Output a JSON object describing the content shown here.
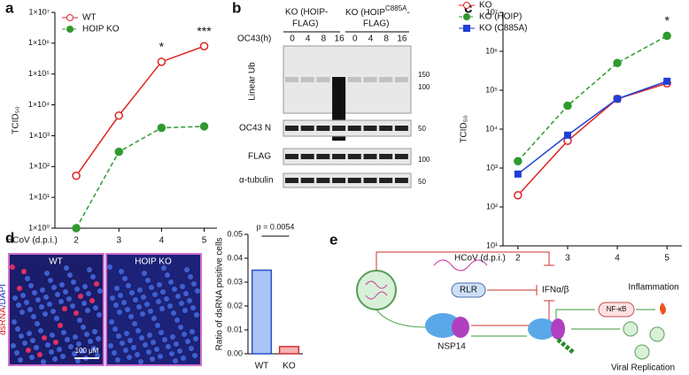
{
  "chart_data": [
    {
      "type": "line",
      "ylabel": "TCID₅₀",
      "xlabel": "HCoV (d.p.i.)",
      "x": [
        2,
        3,
        4,
        5
      ],
      "xlim": [
        1.5,
        5.3
      ],
      "xticks": [
        2,
        3,
        4,
        5
      ],
      "log_y": true,
      "ylim": [
        1,
        10000000
      ],
      "yticks": [
        {
          "value": 1,
          "label": "1×10⁰"
        },
        {
          "value": 10,
          "label": "1×10¹"
        },
        {
          "value": 100,
          "label": "1×10²"
        },
        {
          "value": 1000,
          "label": "1×10³"
        },
        {
          "value": 10000,
          "label": "1×10⁴"
        },
        {
          "value": 100000,
          "label": "1×10⁵"
        },
        {
          "value": 1000000,
          "label": "1×10⁶"
        },
        {
          "value": 10000000,
          "label": "1×10⁷"
        }
      ],
      "legend": "upper left",
      "series": [
        {
          "name": "WT",
          "color": "#e02424",
          "marker": "circle-open",
          "dashed": false,
          "values": [
            50,
            4500,
            250000,
            800000
          ]
        },
        {
          "name": "HOIP KO",
          "color": "#2e9a2e",
          "marker": "circle",
          "dashed": true,
          "values": [
            1,
            300,
            1800,
            2000
          ]
        }
      ],
      "annotations": [
        {
          "text": "*",
          "x": 4
        },
        {
          "text": "***",
          "x": 5
        }
      ]
    },
    {
      "type": "line",
      "ylabel": "TCID₅₀",
      "xlabel": "HCoV (d.p.i.)",
      "x": [
        2,
        3,
        4,
        5
      ],
      "xlim": [
        1.7,
        5.3
      ],
      "xticks": [
        2,
        3,
        4,
        5
      ],
      "log_y": true,
      "ylim": [
        10,
        10000000
      ],
      "yticks": [
        {
          "value": 10,
          "label": "10¹"
        },
        {
          "value": 100,
          "label": "10²"
        },
        {
          "value": 1000,
          "label": "10³"
        },
        {
          "value": 10000,
          "label": "10⁴"
        },
        {
          "value": 100000,
          "label": "10⁵"
        },
        {
          "value": 1000000,
          "label": "10⁶"
        },
        {
          "value": 10000000,
          "label": "10⁷"
        }
      ],
      "legend": "upper left outside",
      "series": [
        {
          "name": "KO",
          "color": "#e02424",
          "marker": "circle-open",
          "dashed": false,
          "values": [
            200,
            5000,
            60000,
            150000
          ]
        },
        {
          "name": "KO (HOIP)",
          "color": "#2e9a2e",
          "marker": "circle",
          "dashed": true,
          "values": [
            1500,
            40000,
            500000,
            2500000
          ]
        },
        {
          "name": "KO (C885A)",
          "color": "#1f3fd6",
          "marker": "square",
          "dashed": false,
          "values": [
            700,
            7000,
            60000,
            170000
          ]
        }
      ],
      "annotations": [
        {
          "text": "*",
          "x": 5
        }
      ]
    },
    {
      "type": "bar",
      "ylabel": "Ratio of dsRNA positive cells",
      "categories": [
        "WT",
        "KO"
      ],
      "values": [
        0.035,
        0.003
      ],
      "colors": [
        "#a9c4f5",
        "#f5b2b2"
      ],
      "edgecolors": [
        "#2850c8",
        "#d03030"
      ],
      "ylim": [
        0,
        0.05
      ],
      "yticks": [
        {
          "value": 0,
          "label": "0.00"
        },
        {
          "value": 0.01,
          "label": "0.01"
        },
        {
          "value": 0.02,
          "label": "0.02"
        },
        {
          "value": 0.03,
          "label": "0.03"
        },
        {
          "value": 0.04,
          "label": "0.04"
        },
        {
          "value": 0.05,
          "label": "0.05"
        }
      ],
      "annotation": "p = 0.0054"
    }
  ],
  "panel_labels": [
    "a",
    "b",
    "c",
    "d",
    "e"
  ],
  "blot": {
    "group1": [
      "KO (HOIP-",
      "FLAG)"
    ],
    "group2": [
      "KO (HOIP",
      "C885A",
      "-",
      "FLAG)"
    ],
    "time_label": "OC43(h)",
    "times": [
      "0",
      "4",
      "8",
      "16",
      "0",
      "4",
      "8",
      "16"
    ],
    "rows": [
      "Linear Ub",
      "OC43 N",
      "FLAG",
      "α-tubulin"
    ],
    "mw": [
      "150",
      "100",
      "50",
      "100",
      "50"
    ]
  },
  "images": {
    "wt": "WT",
    "ko": "HOIP KO",
    "stain1": "dsRNA",
    "stain2": "/DAPI",
    "scale": "100 μM"
  },
  "diagram": {
    "rlr": "RLR",
    "ifn": "IFNα/β",
    "nfkb": "NF-κB",
    "inflammation": "Inflammation",
    "nsp14": "NSP14",
    "replication": "Viral Replication"
  }
}
